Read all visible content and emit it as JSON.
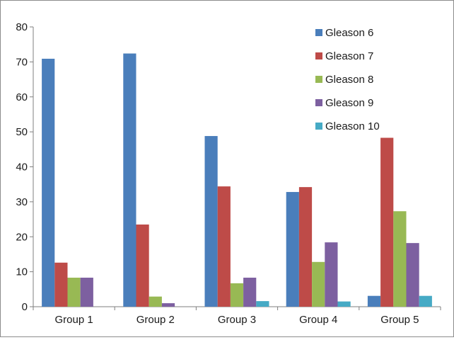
{
  "chart_data": {
    "type": "bar",
    "title": "",
    "xlabel": "",
    "ylabel": "",
    "categories": [
      "Group 1",
      "Group 2",
      "Group 3",
      "Group 4",
      "Group 5"
    ],
    "ylim": [
      0,
      80
    ],
    "yticks": [
      0,
      10,
      20,
      30,
      40,
      50,
      60,
      70,
      80
    ],
    "grid": false,
    "legend_position": "top-right",
    "series": [
      {
        "name": "Gleason 6",
        "color": "#4a7ebb",
        "values": [
          70.9,
          72.4,
          48.8,
          32.8,
          3.1
        ]
      },
      {
        "name": "Gleason 7",
        "color": "#be4b48",
        "values": [
          12.6,
          23.5,
          34.4,
          34.2,
          48.3
        ]
      },
      {
        "name": "Gleason 8",
        "color": "#98b954",
        "values": [
          8.3,
          2.9,
          6.7,
          12.8,
          27.3
        ]
      },
      {
        "name": "Gleason 9",
        "color": "#7d60a0",
        "values": [
          8.3,
          1.0,
          8.3,
          18.4,
          18.2
        ]
      },
      {
        "name": "Gleason 10",
        "color": "#46aac5",
        "values": [
          0,
          0,
          1.6,
          1.5,
          3.1
        ]
      }
    ]
  }
}
